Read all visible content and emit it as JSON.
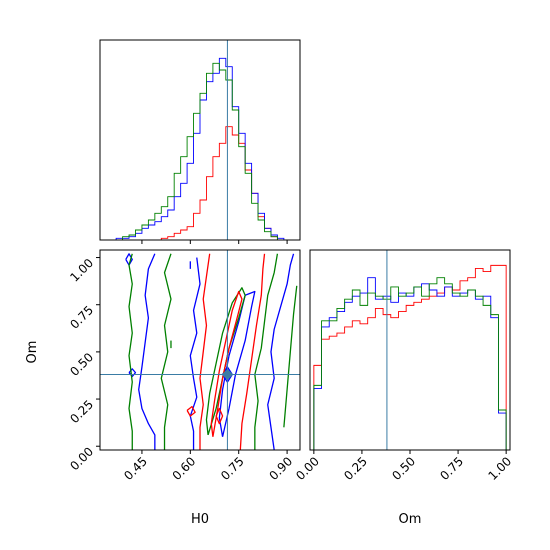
{
  "chart_data": {
    "type": "corner",
    "parameters": [
      "H0",
      "Om"
    ],
    "truth": {
      "H0": 0.715,
      "Om": 0.38,
      "color": "#3a7ca5"
    },
    "series_colors": [
      "#ff0000",
      "#0000ff",
      "#008000"
    ],
    "panels": [
      {
        "id": "h0-histogram",
        "type": "histogram",
        "xlim": [
          0.32,
          0.94
        ],
        "ylim": [
          0,
          1.2
        ],
        "bin_edges": [
          0.35,
          0.37,
          0.39,
          0.41,
          0.43,
          0.45,
          0.47,
          0.49,
          0.51,
          0.53,
          0.55,
          0.57,
          0.59,
          0.61,
          0.63,
          0.65,
          0.67,
          0.69,
          0.71,
          0.73,
          0.75,
          0.77,
          0.79,
          0.81,
          0.83,
          0.85,
          0.87,
          0.89,
          0.91,
          0.93
        ],
        "series": [
          {
            "color": "#ff0000",
            "counts": [
              0,
              0,
              0,
              0,
              0,
              0,
              0,
              0,
              0.01,
              0.02,
              0.04,
              0.06,
              0.08,
              0.16,
              0.24,
              0.38,
              0.5,
              0.58,
              0.68,
              0.63,
              0.58,
              0.42,
              0.28,
              0.14,
              0.07,
              0.02,
              0,
              0,
              0
            ]
          },
          {
            "color": "#0000ff",
            "counts": [
              0,
              0.01,
              0.01,
              0.02,
              0.04,
              0.07,
              0.09,
              0.11,
              0.14,
              0.18,
              0.26,
              0.34,
              0.46,
              0.64,
              0.84,
              0.95,
              1.0,
              1.09,
              1.04,
              0.8,
              0.64,
              0.46,
              0.28,
              0.16,
              0.07,
              0.03,
              0.01,
              0,
              0
            ]
          },
          {
            "color": "#008000",
            "counts": [
              0,
              0,
              0.02,
              0.03,
              0.06,
              0.09,
              0.12,
              0.16,
              0.2,
              0.26,
              0.4,
              0.5,
              0.62,
              0.76,
              0.88,
              1.0,
              1.06,
              1.02,
              0.96,
              0.78,
              0.56,
              0.4,
              0.22,
              0.12,
              0.05,
              0.02,
              0,
              0,
              0
            ]
          }
        ]
      },
      {
        "id": "h0-om-contours",
        "type": "contour",
        "xlim": [
          0.32,
          0.94
        ],
        "ylim": [
          -0.02,
          1.04
        ],
        "series": [
          {
            "color": "#0000ff",
            "paths": [
              [
                [
                  0.49,
                  -0.02
                ],
                [
                  0.49,
                  0.06
                ],
                [
                  0.47,
                  0.12
                ],
                [
                  0.45,
                  0.2
                ],
                [
                  0.44,
                  0.3
                ],
                [
                  0.45,
                  0.42
                ],
                [
                  0.46,
                  0.55
                ],
                [
                  0.47,
                  0.68
                ],
                [
                  0.46,
                  0.8
                ],
                [
                  0.47,
                  0.94
                ],
                [
                  0.49,
                  1.02
                ]
              ],
              [
                [
                  0.61,
                  -0.02
                ],
                [
                  0.61,
                  0.08
                ],
                [
                  0.6,
                  0.16
                ],
                [
                  0.62,
                  0.26
                ],
                [
                  0.61,
                  0.36
                ],
                [
                  0.6,
                  0.48
                ],
                [
                  0.62,
                  0.6
                ],
                [
                  0.61,
                  0.72
                ],
                [
                  0.63,
                  0.86
                ],
                [
                  0.62,
                  1.0
                ]
              ],
              [
                [
                  0.7,
                  0.05
                ],
                [
                  0.72,
                  0.2
                ],
                [
                  0.74,
                  0.38
                ],
                [
                  0.77,
                  0.56
                ],
                [
                  0.79,
                  0.74
                ],
                [
                  0.8,
                  0.82
                ],
                [
                  0.77,
                  0.8
                ],
                [
                  0.75,
                  0.66
                ],
                [
                  0.72,
                  0.48
                ],
                [
                  0.7,
                  0.3
                ],
                [
                  0.69,
                  0.15
                ],
                [
                  0.7,
                  0.05
                ]
              ],
              [
                [
                  0.86,
                  -0.02
                ],
                [
                  0.85,
                  0.1
                ],
                [
                  0.84,
                  0.22
                ],
                [
                  0.86,
                  0.36
                ],
                [
                  0.85,
                  0.5
                ],
                [
                  0.86,
                  0.62
                ],
                [
                  0.88,
                  0.74
                ],
                [
                  0.9,
                  0.86
                ],
                [
                  0.91,
                  0.96
                ],
                [
                  0.92,
                  1.02
                ]
              ],
              [
                [
                  0.4,
                  0.99
                ],
                [
                  0.41,
                  1.02
                ],
                [
                  0.42,
                  0.99
                ],
                [
                  0.41,
                  0.96
                ],
                [
                  0.4,
                  0.99
                ]
              ],
              [
                [
                  0.41,
                  0.39
                ],
                [
                  0.42,
                  0.41
                ],
                [
                  0.43,
                  0.39
                ],
                [
                  0.42,
                  0.37
                ],
                [
                  0.41,
                  0.39
                ]
              ],
              [
                [
                  0.6,
                  0.94
                ],
                [
                  0.6,
                  0.98
                ]
              ],
              [
                [
                  0.7,
                  0.38
                ],
                [
                  0.715,
                  0.42
                ],
                [
                  0.73,
                  0.38
                ],
                [
                  0.715,
                  0.34
                ],
                [
                  0.7,
                  0.38
                ]
              ]
            ]
          },
          {
            "color": "#008000",
            "paths": [
              [
                [
                  0.42,
                  -0.02
                ],
                [
                  0.42,
                  0.08
                ],
                [
                  0.41,
                  0.2
                ],
                [
                  0.42,
                  0.34
                ],
                [
                  0.41,
                  0.48
                ],
                [
                  0.42,
                  0.6
                ],
                [
                  0.41,
                  0.74
                ],
                [
                  0.42,
                  0.86
                ],
                [
                  0.41,
                  0.96
                ],
                [
                  0.42,
                  1.02
                ]
              ],
              [
                [
                  0.52,
                  -0.02
                ],
                [
                  0.52,
                  0.1
                ],
                [
                  0.53,
                  0.22
                ],
                [
                  0.51,
                  0.36
                ],
                [
                  0.53,
                  0.5
                ],
                [
                  0.52,
                  0.64
                ],
                [
                  0.54,
                  0.78
                ],
                [
                  0.52,
                  0.92
                ],
                [
                  0.54,
                  1.02
                ]
              ],
              [
                [
                  0.655,
                  0.06
                ],
                [
                  0.68,
                  0.2
                ],
                [
                  0.7,
                  0.36
                ],
                [
                  0.72,
                  0.52
                ],
                [
                  0.75,
                  0.68
                ],
                [
                  0.77,
                  0.8
                ],
                [
                  0.76,
                  0.84
                ],
                [
                  0.73,
                  0.76
                ],
                [
                  0.7,
                  0.6
                ],
                [
                  0.68,
                  0.44
                ],
                [
                  0.66,
                  0.28
                ],
                [
                  0.65,
                  0.14
                ],
                [
                  0.655,
                  0.06
                ]
              ],
              [
                [
                  0.8,
                  -0.02
                ],
                [
                  0.8,
                  0.1
                ],
                [
                  0.81,
                  0.24
                ],
                [
                  0.8,
                  0.38
                ],
                [
                  0.82,
                  0.52
                ],
                [
                  0.83,
                  0.66
                ],
                [
                  0.84,
                  0.8
                ],
                [
                  0.86,
                  0.92
                ],
                [
                  0.87,
                  1.02
                ]
              ],
              [
                [
                  0.89,
                  0.1
                ],
                [
                  0.9,
                  0.3
                ],
                [
                  0.91,
                  0.5
                ],
                [
                  0.92,
                  0.7
                ],
                [
                  0.93,
                  0.85
                ]
              ],
              [
                [
                  0.54,
                  0.52
                ],
                [
                  0.54,
                  0.56
                ]
              ]
            ]
          },
          {
            "color": "#ff0000",
            "paths": [
              [
                [
                  0.63,
                  -0.02
                ],
                [
                  0.63,
                  0.1
                ],
                [
                  0.64,
                  0.22
                ],
                [
                  0.63,
                  0.36
                ],
                [
                  0.64,
                  0.5
                ],
                [
                  0.65,
                  0.64
                ],
                [
                  0.64,
                  0.78
                ],
                [
                  0.65,
                  0.9
                ],
                [
                  0.66,
                  1.02
                ]
              ],
              [
                [
                  0.67,
                  0.05
                ],
                [
                  0.685,
                  0.2
                ],
                [
                  0.7,
                  0.36
                ],
                [
                  0.72,
                  0.52
                ],
                [
                  0.745,
                  0.68
                ],
                [
                  0.76,
                  0.78
                ],
                [
                  0.75,
                  0.82
                ],
                [
                  0.73,
                  0.72
                ],
                [
                  0.71,
                  0.56
                ],
                [
                  0.69,
                  0.4
                ],
                [
                  0.675,
                  0.24
                ],
                [
                  0.665,
                  0.12
                ],
                [
                  0.67,
                  0.05
                ]
              ],
              [
                [
                  0.755,
                  -0.02
                ],
                [
                  0.76,
                  0.12
                ],
                [
                  0.775,
                  0.28
                ],
                [
                  0.79,
                  0.46
                ],
                [
                  0.805,
                  0.64
                ],
                [
                  0.82,
                  0.8
                ],
                [
                  0.825,
                  0.94
                ],
                [
                  0.83,
                  1.02
                ]
              ],
              [
                [
                  0.59,
                  0.19
                ],
                [
                  0.605,
                  0.21
                ],
                [
                  0.615,
                  0.18
                ],
                [
                  0.6,
                  0.16
                ],
                [
                  0.59,
                  0.19
                ]
              ],
              [
                [
                  0.68,
                  0.16
                ],
                [
                  0.69,
                  0.2
                ],
                [
                  0.7,
                  0.16
                ],
                [
                  0.69,
                  0.12
                ],
                [
                  0.68,
                  0.16
                ]
              ]
            ]
          }
        ]
      },
      {
        "id": "om-histogram",
        "type": "histogram",
        "xlim": [
          -0.02,
          1.02
        ],
        "ylim": [
          0,
          1.3
        ],
        "bin_edges": [
          0,
          0.04,
          0.08,
          0.12,
          0.16,
          0.2,
          0.24,
          0.28,
          0.32,
          0.36,
          0.4,
          0.44,
          0.48,
          0.52,
          0.56,
          0.6,
          0.64,
          0.68,
          0.72,
          0.76,
          0.8,
          0.84,
          0.88,
          0.92,
          0.96,
          1.0
        ],
        "series": [
          {
            "color": "#ff0000",
            "counts": [
              0.55,
              0.72,
              0.74,
              0.76,
              0.8,
              0.84,
              0.82,
              0.86,
              0.92,
              0.88,
              0.86,
              0.9,
              0.94,
              0.96,
              0.98,
              1.0,
              1.02,
              1.06,
              1.04,
              1.1,
              1.12,
              1.18,
              1.16,
              1.2,
              1.2
            ]
          },
          {
            "color": "#0000ff",
            "counts": [
              0.4,
              0.8,
              0.86,
              0.9,
              0.96,
              1.0,
              1.02,
              1.12,
              0.98,
              1.0,
              0.96,
              1.02,
              1.0,
              1.06,
              1.08,
              1.04,
              1.0,
              1.06,
              1.0,
              1.02,
              1.04,
              0.98,
              1.0,
              0.86,
              0.24
            ]
          },
          {
            "color": "#008000",
            "counts": [
              0.42,
              0.84,
              0.84,
              0.92,
              0.98,
              1.04,
              0.94,
              1.02,
              1.0,
              0.98,
              1.06,
              1.0,
              1.02,
              1.06,
              1.0,
              1.08,
              1.12,
              1.08,
              1.02,
              1.0,
              1.04,
              1.0,
              0.94,
              0.88,
              0.26
            ]
          }
        ]
      }
    ],
    "axes": {
      "h0_ticks": [
        0.45,
        0.6,
        0.75,
        0.9
      ],
      "h0_tick_labels": [
        "0.45",
        "0.60",
        "0.75",
        "0.90"
      ],
      "om_ticks": [
        0,
        0.25,
        0.5,
        0.75,
        1.0
      ],
      "om_tick_labels": [
        "0.00",
        "0.25",
        "0.50",
        "0.75",
        "1.00"
      ],
      "xlabel_left": "H0",
      "xlabel_right": "Om",
      "ylabel": "Om"
    }
  }
}
